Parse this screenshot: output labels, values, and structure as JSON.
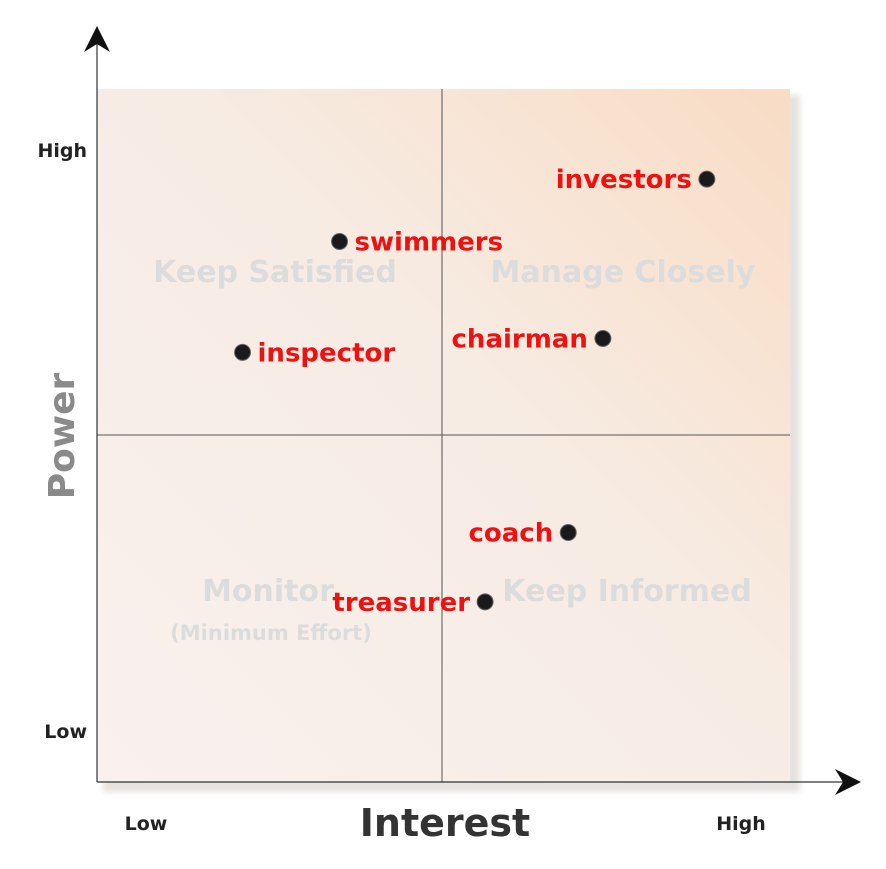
{
  "chart_data": {
    "type": "scatter",
    "xlabel": "Interest",
    "ylabel": "Power",
    "x_ticks": {
      "low": "Low",
      "high": "High"
    },
    "y_ticks": {
      "low": "Low",
      "high": "High"
    },
    "xlim": [
      0,
      10
    ],
    "ylim": [
      0,
      10
    ],
    "quadrants": {
      "top_left": "Keep Satisfied",
      "top_right": "Manage Closely",
      "bottom_left": "Monitor",
      "bottom_left_sub": "(Minimum Effort)",
      "bottom_right": "Keep Informed"
    },
    "points": [
      {
        "label": "investors",
        "x": 8.8,
        "y": 8.7
      },
      {
        "label": "swimmers",
        "x": 3.5,
        "y": 7.8
      },
      {
        "label": "chairman",
        "x": 7.3,
        "y": 6.4
      },
      {
        "label": "inspector",
        "x": 2.1,
        "y": 6.2
      },
      {
        "label": "coach",
        "x": 6.8,
        "y": 3.6
      },
      {
        "label": "treasurer",
        "x": 5.6,
        "y": 2.6
      }
    ],
    "colors": {
      "point": "#1a1a1a",
      "point_label": "#ee1111",
      "quadrant_label": "#dcdcdc",
      "plot_bg_light": "#f9f3ef",
      "plot_bg_warm": "#f7dcc3"
    },
    "grid": false,
    "legend": "none"
  }
}
